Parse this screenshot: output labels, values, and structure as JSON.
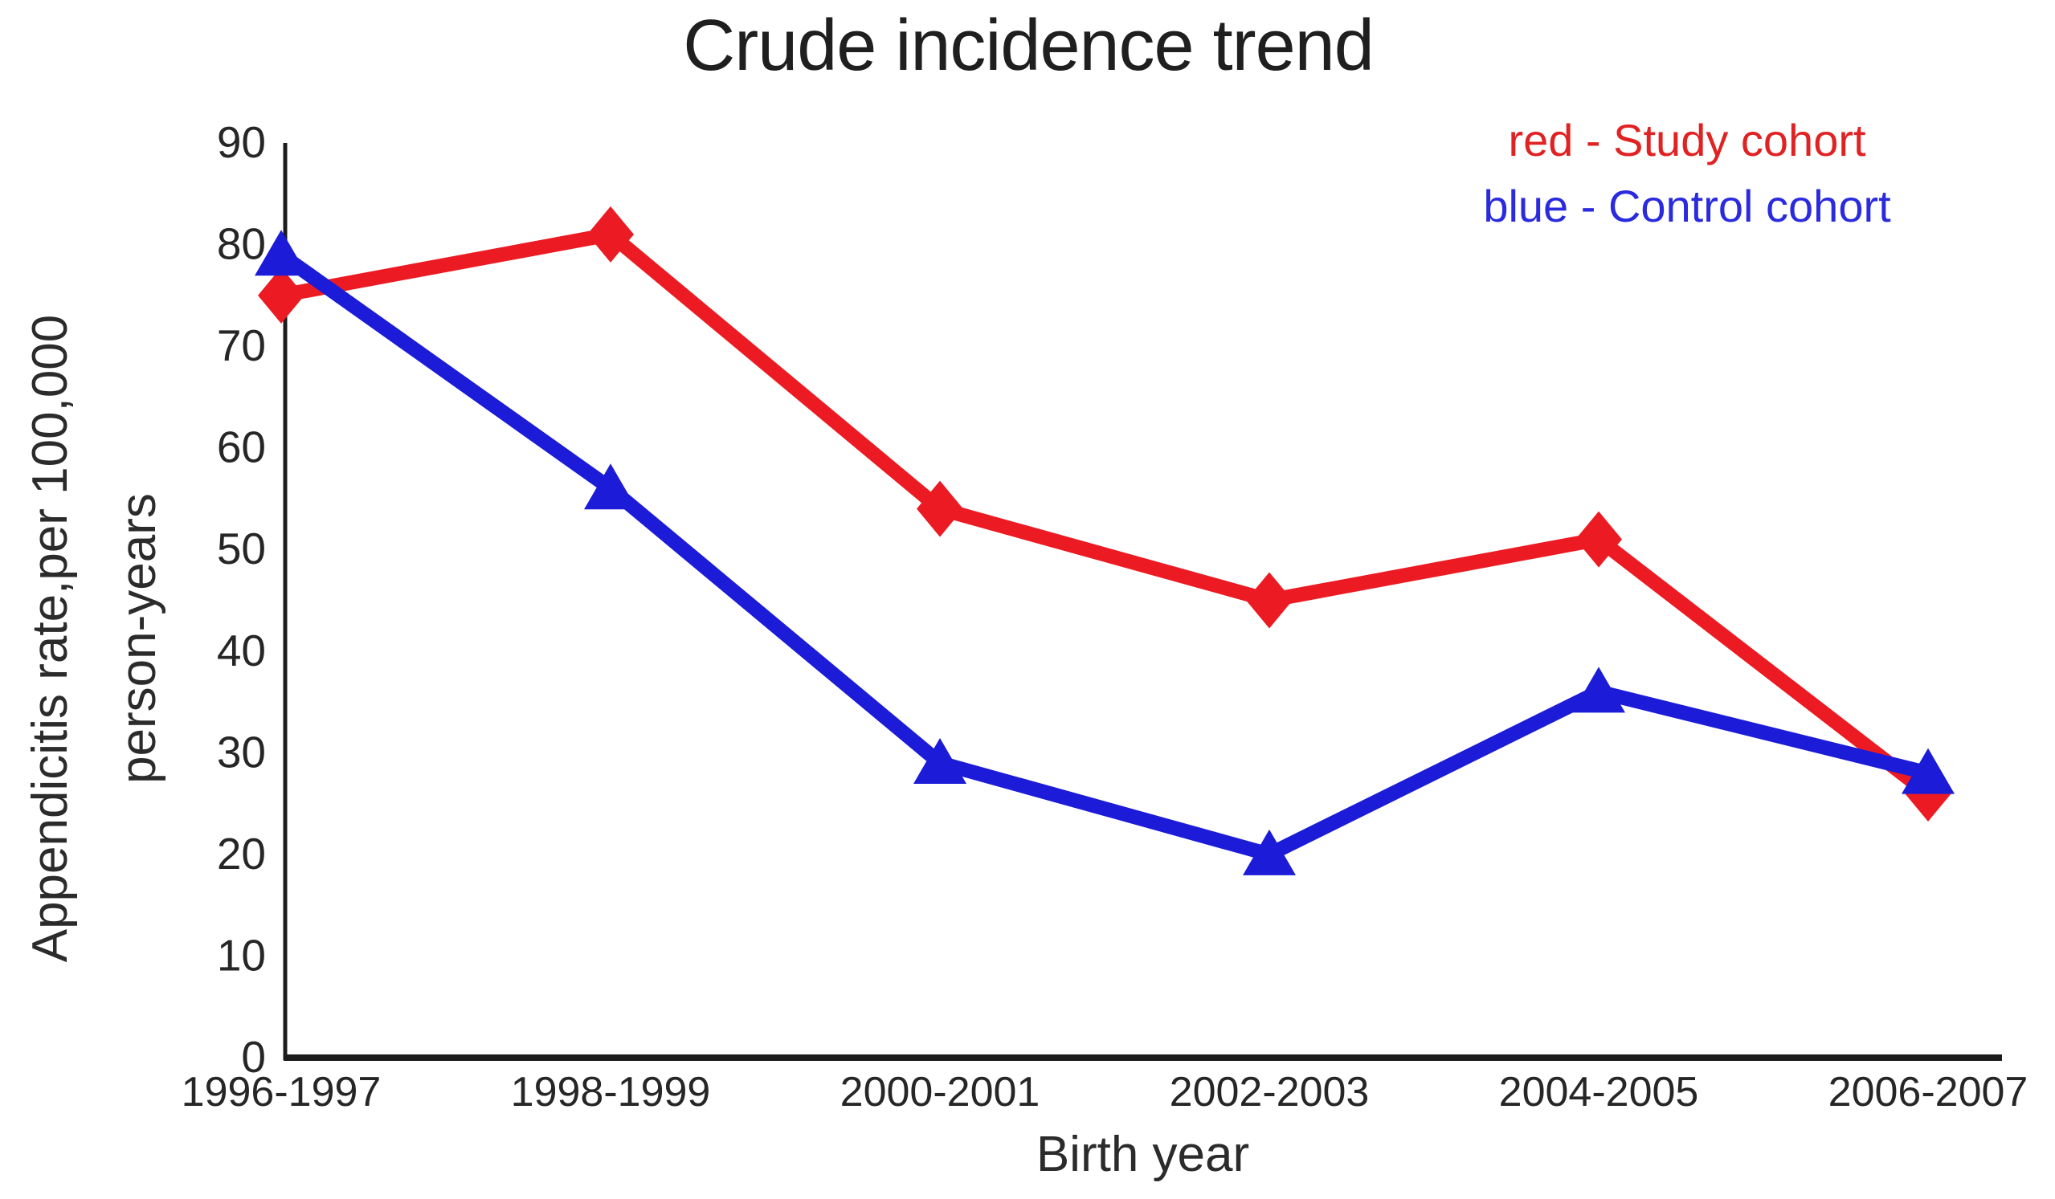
{
  "title": "Crude incidence trend",
  "legend": {
    "study": {
      "label": "red - Study cohort",
      "color": "#e02222"
    },
    "control": {
      "label": "blue - Control cohort",
      "color": "#2a2adf"
    }
  },
  "axes": {
    "y_label_line1": "Appendicitis rate,per 100,000",
    "y_label_line2": "person-years",
    "x_label": "Birth year",
    "axis_color": "#1c1c1c"
  },
  "chart_data": {
    "type": "line",
    "title": "Crude incidence trend",
    "xlabel": "Birth year",
    "ylabel": "Appendicitis rate,per 100,000 person-years",
    "categories": [
      "1996-1997",
      "1998-1999",
      "2000-2001",
      "2002-2003",
      "2004-2005",
      "2006-2007"
    ],
    "series": [
      {
        "name": "Study cohort",
        "color": "#ec1b23",
        "marker": "diamond",
        "values": [
          75,
          81,
          54,
          45,
          51,
          26
        ]
      },
      {
        "name": "Control cohort",
        "color": "#1b1bd8",
        "marker": "triangle",
        "values": [
          79,
          56,
          29,
          20,
          36,
          28
        ]
      }
    ],
    "ylim": [
      0,
      90
    ],
    "yticks": [
      0,
      10,
      20,
      30,
      40,
      50,
      60,
      70,
      80,
      90
    ],
    "grid": false,
    "legend_position": "top-right"
  }
}
